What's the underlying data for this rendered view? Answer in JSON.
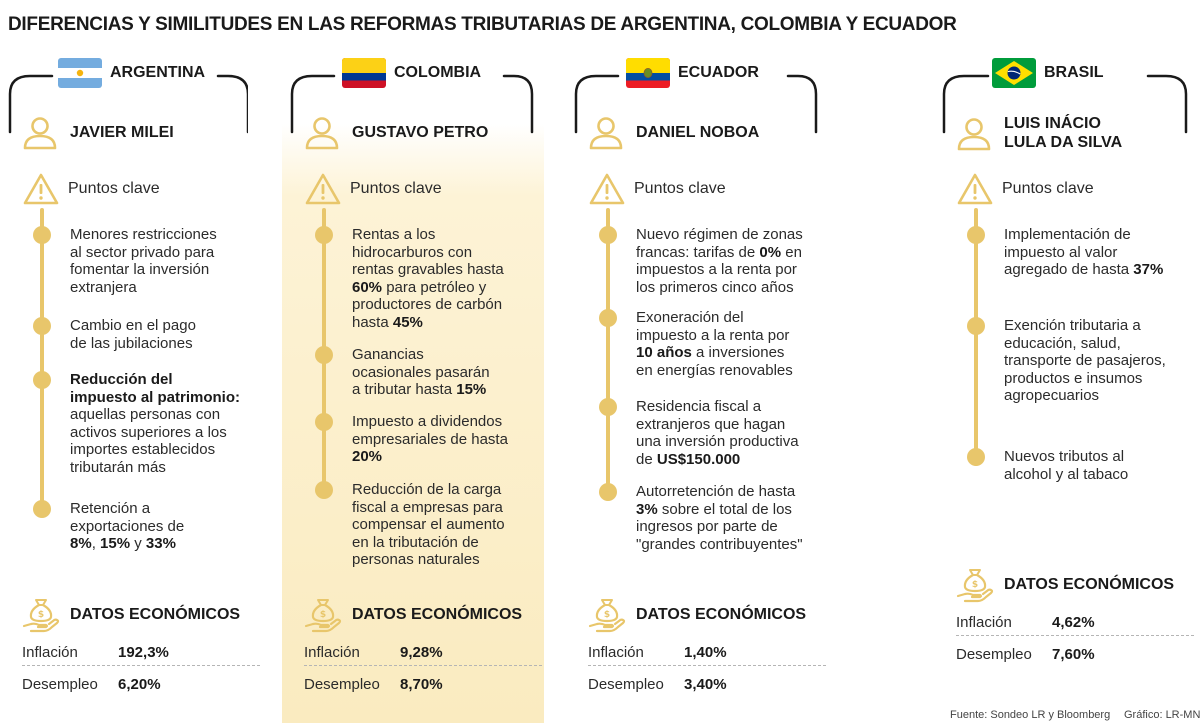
{
  "title": "DIFERENCIAS Y SIMILITUDES EN LAS REFORMAS TRIBUTARIAS DE ARGENTINA, COLOMBIA Y ECUADOR",
  "key_points_label": "Puntos clave",
  "econ_title": "DATOS ECONÓMICOS",
  "inflation_label": "Inflación",
  "unemployment_label": "Desempleo",
  "countries": [
    {
      "country": "ARGENTINA",
      "flag": "argentina-flag",
      "president": [
        "JAVIER MILEI"
      ],
      "points": [
        [
          "Menores restricciones",
          "al sector privado para",
          "fomentar la inversión",
          "extranjera"
        ],
        [
          "Cambio en el pago",
          "de las jubilaciones"
        ],
        [
          "**Reducción del**",
          "**impuesto al patrimonio:**",
          "aquellas personas con",
          "activos superiores a los",
          "importes establecidos",
          "tributarán más"
        ],
        [
          "Retención a",
          "exportaciones de",
          "**8%**, **15%** y **33%**"
        ]
      ],
      "inflation": "192,3%",
      "unemployment": "6,20%"
    },
    {
      "country": "COLOMBIA",
      "flag": "colombia-flag",
      "president": [
        "GUSTAVO PETRO"
      ],
      "points": [
        [
          "Rentas a los",
          "hidrocarburos con",
          "rentas gravables hasta",
          "**60%** para petróleo y",
          "productores de carbón",
          "hasta **45%**"
        ],
        [
          "Ganancias",
          "ocasionales pasarán",
          "a tributar hasta **15%**"
        ],
        [
          "Impuesto a dividendos",
          "empresariales de hasta",
          "**20%**"
        ],
        [
          "Reducción de la carga",
          "fiscal a empresas para",
          "compensar el aumento",
          "en la tributación de",
          "personas naturales"
        ]
      ],
      "inflation": "9,28%",
      "unemployment": "8,70%"
    },
    {
      "country": "ECUADOR",
      "flag": "ecuador-flag",
      "president": [
        "DANIEL NOBOA"
      ],
      "points": [
        [
          "Nuevo régimen de zonas",
          "francas: tarifas de **0%** en",
          "impuestos a la renta por",
          "los primeros cinco años"
        ],
        [
          "Exoneración del",
          "impuesto a la renta por",
          "**10 años** a inversiones",
          "en energías renovables"
        ],
        [
          "Residencia fiscal a",
          "extranjeros que hagan",
          "una inversión productiva",
          "de **US$150.000**"
        ],
        [
          "Autorretención de hasta",
          "**3%** sobre el total de los",
          "ingresos por parte de",
          "\"grandes contribuyentes\""
        ]
      ],
      "inflation": "1,40%",
      "unemployment": "3,40%"
    },
    {
      "country": "BRASIL",
      "flag": "brasil-flag",
      "president": [
        "LUIS INÁCIO",
        "LULA DA SILVA"
      ],
      "points": [
        [
          "Implementación de",
          "impuesto al valor",
          "agregado de hasta **37%**"
        ],
        [
          "Exención tributaria a",
          "educación, salud,",
          "transporte de pasajeros,",
          "productos e insumos",
          "agropecuarios"
        ],
        [
          "Nuevos tributos al",
          "alcohol y al tabaco"
        ]
      ],
      "inflation": "4,62%",
      "unemployment": "7,60%"
    }
  ],
  "footer": {
    "source": "Fuente: Sondeo LR y Bloomberg",
    "credit": "Gráfico: LR-MN"
  },
  "colors": {
    "accent": "#e8c66b",
    "highlight": "#faebc0",
    "text": "#2b2b2b"
  }
}
